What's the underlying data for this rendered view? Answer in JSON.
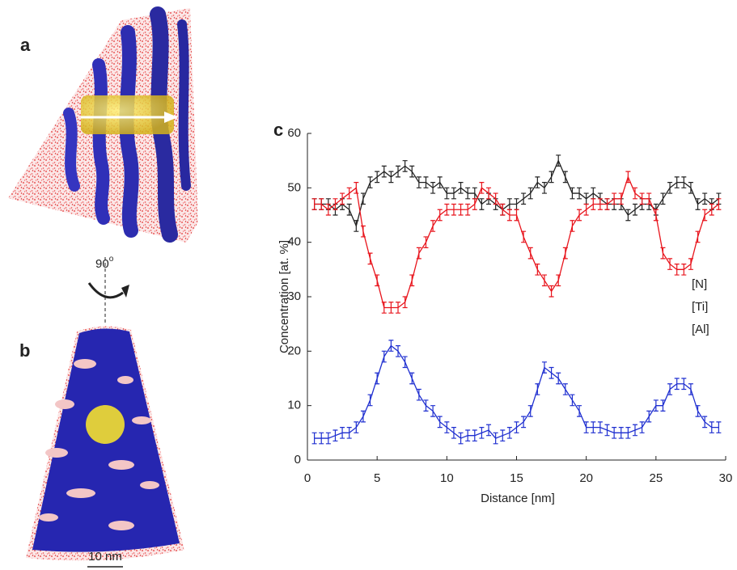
{
  "panels": {
    "a": "a",
    "b": "b",
    "c": "c"
  },
  "rotation": {
    "angle": "90",
    "unit": "o"
  },
  "scale_bar": "10 nm",
  "chart_data": {
    "type": "line",
    "xlabel": "Distance [nm]",
    "ylabel": "Concentration [at. %]",
    "x": [
      0.5,
      1,
      1.5,
      2,
      2.5,
      3,
      3.5,
      4,
      4.5,
      5,
      5.5,
      6,
      6.5,
      7,
      7.5,
      8,
      8.5,
      9,
      9.5,
      10,
      10.5,
      11,
      11.5,
      12,
      12.5,
      13,
      13.5,
      14,
      14.5,
      15,
      15.5,
      16,
      16.5,
      17,
      17.5,
      18,
      18.5,
      19,
      19.5,
      20,
      20.5,
      21,
      21.5,
      22,
      22.5,
      23,
      23.5,
      24,
      24.5,
      25,
      25.5,
      26,
      26.5,
      27,
      27.5,
      28,
      28.5,
      29,
      29.5
    ],
    "series": [
      {
        "name": "[N]",
        "color": "#222222",
        "error": 1,
        "values": [
          47,
          47,
          47,
          46,
          47,
          46,
          43,
          48,
          51,
          52,
          53,
          52,
          53,
          54,
          53,
          51,
          51,
          50,
          51,
          49,
          49,
          50,
          49,
          49,
          47,
          48,
          47,
          46,
          47,
          47,
          48,
          49,
          51,
          50,
          52,
          55,
          52,
          49,
          49,
          48,
          49,
          48,
          47,
          47,
          47,
          45,
          46,
          47,
          47,
          46,
          48,
          50,
          51,
          51,
          50,
          47,
          48,
          47,
          48
        ]
      },
      {
        "name": "[Ti]",
        "color": "#1f2fd0",
        "error": 1,
        "values": [
          4,
          4,
          4,
          4.5,
          5,
          5,
          6,
          8,
          11,
          15,
          19,
          21,
          20,
          18,
          15,
          12,
          10,
          9,
          7,
          6,
          5,
          4,
          4.5,
          4.5,
          5,
          5.5,
          4,
          4.5,
          5,
          6,
          7,
          9,
          13,
          17,
          16,
          15,
          13,
          11,
          9,
          6,
          6,
          6,
          5.5,
          5,
          5,
          5,
          5.5,
          6,
          8,
          10,
          10,
          13,
          14,
          14,
          13,
          9,
          7,
          6,
          6
        ]
      },
      {
        "name": "[Al]",
        "color": "#e8141c",
        "error": 1,
        "values": [
          47,
          47,
          46,
          47,
          48,
          49,
          50,
          42,
          37,
          33,
          28,
          28,
          28,
          29,
          33,
          38,
          40,
          43,
          45,
          46,
          46,
          46,
          46,
          47,
          50,
          49,
          48,
          46,
          45,
          45,
          41,
          38,
          35,
          33,
          31,
          33,
          38,
          43,
          45,
          46,
          47,
          47,
          47,
          48,
          48,
          52,
          49,
          48,
          48,
          45,
          38,
          36,
          35,
          35,
          36,
          41,
          45,
          46,
          47
        ]
      }
    ],
    "xlim": [
      0,
      30
    ],
    "xticks": [
      0,
      5,
      10,
      15,
      20,
      25,
      30
    ],
    "ylim": [
      0,
      60
    ],
    "yticks": [
      0,
      10,
      20,
      30,
      40,
      50,
      60
    ],
    "legend": "right"
  }
}
